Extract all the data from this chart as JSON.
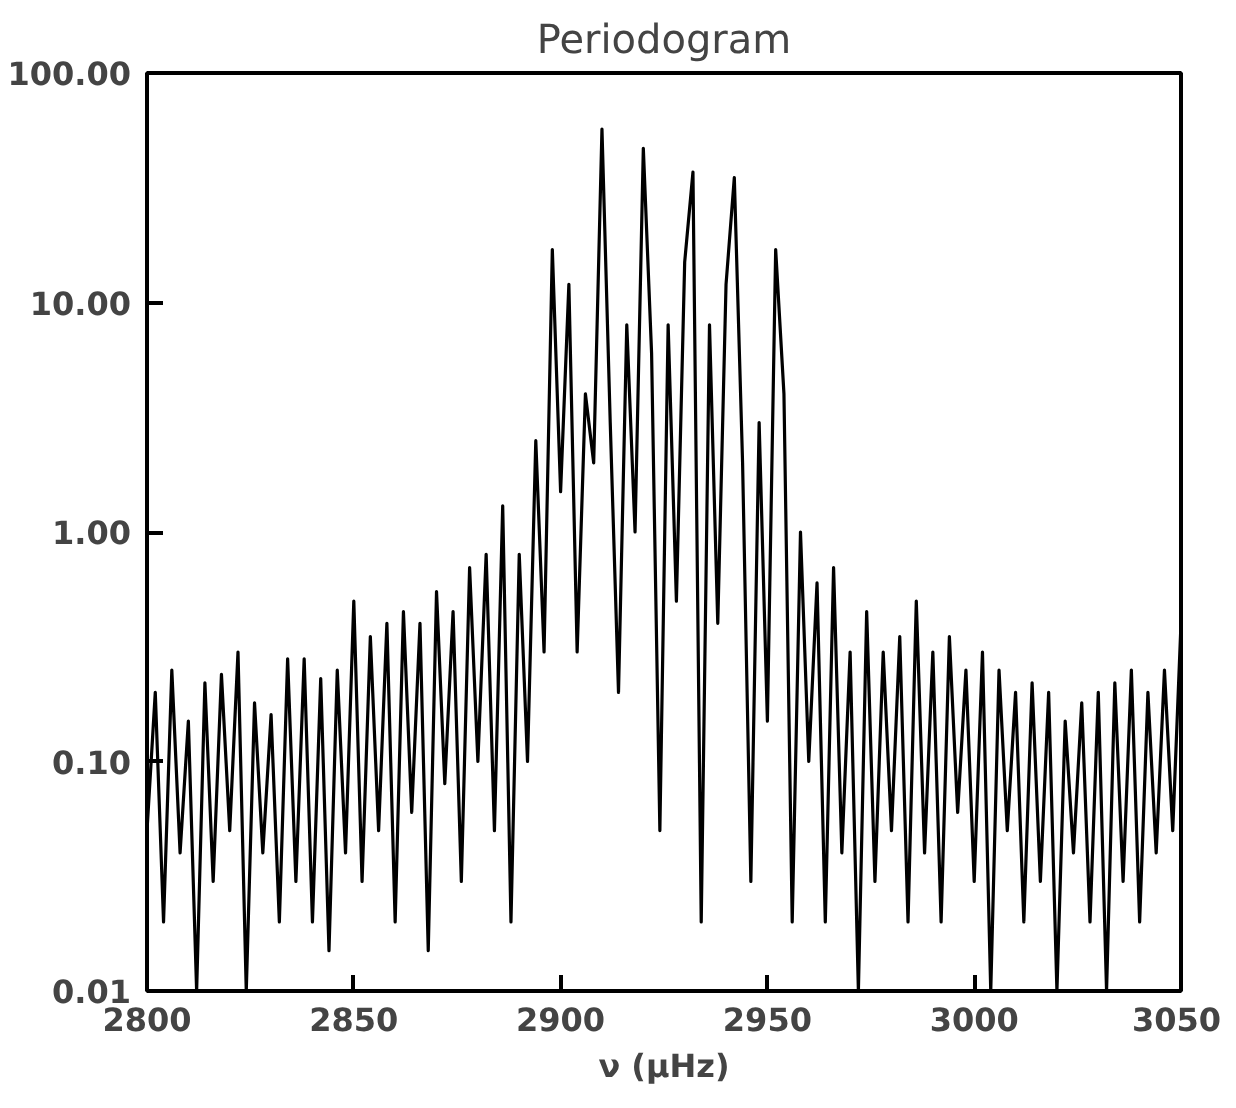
{
  "chart_data": {
    "type": "line",
    "title": "Periodogram",
    "xlabel": "ν (μHz)",
    "x": [
      2800,
      2802,
      2804,
      2806,
      2808,
      2810,
      2812,
      2814,
      2816,
      2818,
      2820,
      2822,
      2824,
      2826,
      2828,
      2830,
      2832,
      2834,
      2836,
      2838,
      2840,
      2842,
      2844,
      2846,
      2848,
      2850,
      2852,
      2854,
      2856,
      2858,
      2860,
      2862,
      2864,
      2866,
      2868,
      2870,
      2872,
      2874,
      2876,
      2878,
      2880,
      2882,
      2884,
      2886,
      2888,
      2890,
      2892,
      2894,
      2896,
      2898,
      2900,
      2902,
      2904,
      2906,
      2908,
      2910,
      2912,
      2914,
      2916,
      2918,
      2920,
      2922,
      2924,
      2926,
      2928,
      2930,
      2932,
      2934,
      2936,
      2938,
      2940,
      2942,
      2944,
      2946,
      2948,
      2950,
      2952,
      2954,
      2956,
      2958,
      2960,
      2962,
      2964,
      2966,
      2968,
      2970,
      2972,
      2974,
      2976,
      2978,
      2980,
      2982,
      2984,
      2986,
      2988,
      2990,
      2992,
      2994,
      2996,
      2998,
      3000,
      3002,
      3004,
      3006,
      3008,
      3010,
      3012,
      3014,
      3016,
      3018,
      3020,
      3022,
      3024,
      3026,
      3028,
      3030,
      3032,
      3034,
      3036,
      3038,
      3040,
      3042,
      3044,
      3046,
      3048,
      3050
    ],
    "series": [
      {
        "color": "#000000",
        "values": [
          0.05,
          0.2,
          0.02,
          0.25,
          0.04,
          0.15,
          0.01,
          0.22,
          0.03,
          0.24,
          0.05,
          0.3,
          0.01,
          0.18,
          0.04,
          0.16,
          0.02,
          0.28,
          0.03,
          0.28,
          0.02,
          0.23,
          0.015,
          0.25,
          0.04,
          0.5,
          0.03,
          0.35,
          0.05,
          0.4,
          0.02,
          0.45,
          0.06,
          0.4,
          0.015,
          0.55,
          0.08,
          0.45,
          0.03,
          0.7,
          0.1,
          0.8,
          0.05,
          1.3,
          0.02,
          0.8,
          0.1,
          2.5,
          0.3,
          17,
          1.5,
          12,
          0.3,
          4,
          2,
          57,
          3,
          0.2,
          8,
          1,
          47,
          6,
          0.05,
          8,
          0.5,
          15,
          37,
          0.02,
          8,
          0.4,
          12,
          35,
          2,
          0.03,
          3,
          0.15,
          17,
          4,
          0.02,
          1,
          0.1,
          0.6,
          0.02,
          0.7,
          0.04,
          0.3,
          0.01,
          0.45,
          0.03,
          0.3,
          0.05,
          0.35,
          0.02,
          0.5,
          0.04,
          0.3,
          0.02,
          0.35,
          0.06,
          0.25,
          0.03,
          0.3,
          0.01,
          0.25,
          0.05,
          0.2,
          0.02,
          0.22,
          0.03,
          0.2,
          0.01,
          0.15,
          0.04,
          0.18,
          0.02,
          0.2,
          0.01,
          0.22,
          0.03,
          0.25,
          0.02,
          0.2,
          0.04,
          0.25,
          0.05,
          0.4
        ]
      }
    ],
    "xlim": [
      2800,
      3050
    ],
    "xticks": [
      2800,
      2850,
      2900,
      2950,
      3000,
      3050
    ],
    "ylim": [
      0.01,
      100
    ],
    "log": "y",
    "yticks": [
      {
        "value": 0.01,
        "label": "0.01"
      },
      {
        "value": 0.1,
        "label": "0.10"
      },
      {
        "value": 1,
        "label": "1.00"
      },
      {
        "value": 10,
        "label": "10.00"
      },
      {
        "value": 100,
        "label": "100.00"
      }
    ],
    "grid": false,
    "marker": "none",
    "line_style": "solid"
  }
}
